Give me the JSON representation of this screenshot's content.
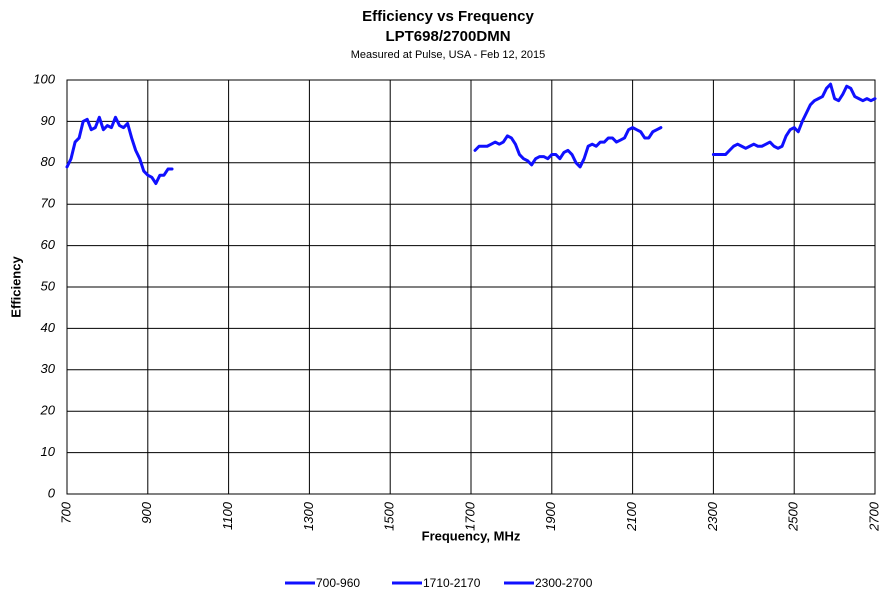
{
  "chart_data": {
    "type": "line",
    "title": "Efficiency vs Frequency",
    "subtitle": "LPT698/2700DMN",
    "annotation": "Measured at Pulse, USA - Feb 12, 2015",
    "xlabel": "Frequency, MHz",
    "ylabel": "Efficiency",
    "xlim": [
      700,
      2700
    ],
    "xticks": [
      700,
      900,
      1100,
      1300,
      1500,
      1700,
      1900,
      2100,
      2300,
      2500,
      2700
    ],
    "ylim": [
      0,
      100
    ],
    "yticks": [
      0,
      10,
      20,
      30,
      40,
      50,
      60,
      70,
      80,
      90,
      100
    ],
    "grid": true,
    "legend": "bottom",
    "series": [
      {
        "name": "700-960",
        "color": "#1010ff",
        "x": [
          700,
          710,
          720,
          730,
          740,
          750,
          760,
          770,
          780,
          790,
          800,
          810,
          820,
          830,
          840,
          850,
          860,
          870,
          880,
          890,
          900,
          910,
          920,
          930,
          940,
          950,
          960
        ],
        "values": [
          79,
          81,
          85,
          86,
          90,
          90.5,
          88,
          88.5,
          91,
          88,
          89,
          88.5,
          91,
          89,
          88.5,
          89.5,
          86,
          83,
          81,
          78,
          77,
          76.5,
          75,
          77,
          77,
          78.5,
          78.5
        ]
      },
      {
        "name": "1710-2170",
        "color": "#1010ff",
        "x": [
          1710,
          1720,
          1730,
          1740,
          1750,
          1760,
          1770,
          1780,
          1790,
          1800,
          1810,
          1820,
          1830,
          1840,
          1850,
          1860,
          1870,
          1880,
          1890,
          1900,
          1910,
          1920,
          1930,
          1940,
          1950,
          1960,
          1970,
          1980,
          1990,
          2000,
          2010,
          2020,
          2030,
          2040,
          2050,
          2060,
          2070,
          2080,
          2090,
          2100,
          2110,
          2120,
          2130,
          2140,
          2150,
          2160,
          2170
        ],
        "values": [
          83,
          84,
          84,
          84,
          84.5,
          85,
          84.5,
          85,
          86.5,
          86,
          84.5,
          82,
          81,
          80.5,
          79.5,
          81,
          81.5,
          81.5,
          81,
          82,
          82,
          81,
          82.5,
          83,
          82,
          80,
          79,
          81,
          84,
          84.5,
          84,
          85,
          85,
          86,
          86,
          85,
          85.5,
          86,
          88,
          88.5,
          88,
          87.5,
          86,
          86,
          87.5,
          88,
          88.5
        ]
      },
      {
        "name": "2300-2700",
        "color": "#1010ff",
        "x": [
          2300,
          2310,
          2320,
          2330,
          2340,
          2350,
          2360,
          2370,
          2380,
          2390,
          2400,
          2410,
          2420,
          2430,
          2440,
          2450,
          2460,
          2470,
          2480,
          2490,
          2500,
          2510,
          2520,
          2530,
          2540,
          2550,
          2560,
          2570,
          2580,
          2590,
          2600,
          2610,
          2620,
          2630,
          2640,
          2650,
          2660,
          2670,
          2680,
          2690,
          2700
        ],
        "values": [
          82,
          82,
          82,
          82,
          83,
          84,
          84.5,
          84,
          83.5,
          84,
          84.5,
          84,
          84,
          84.5,
          85,
          84,
          83.5,
          84,
          86.5,
          88,
          88.5,
          87.5,
          90,
          92,
          94,
          95,
          95.5,
          96,
          98,
          99,
          95.5,
          95,
          96.5,
          98.5,
          98,
          96,
          95.5,
          95,
          95.5,
          95,
          95.5
        ]
      }
    ]
  }
}
